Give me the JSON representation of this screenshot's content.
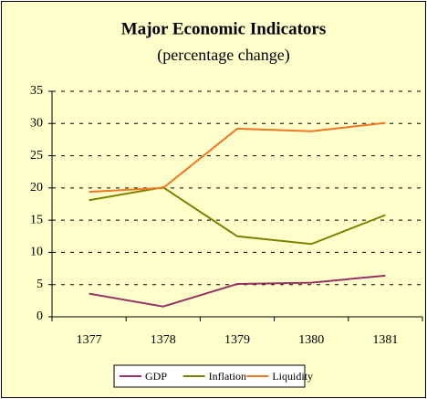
{
  "chart_data": {
    "type": "line",
    "title": "Major Economic Indicators",
    "subtitle": "(percentage change)",
    "categories": [
      "1377",
      "1378",
      "1379",
      "1380",
      "1381"
    ],
    "series": [
      {
        "name": "GDP",
        "color": "#993366",
        "values": [
          3.6,
          1.6,
          5.1,
          5.3,
          6.4
        ]
      },
      {
        "name": "Inflation",
        "color": "#808000",
        "values": [
          18.1,
          20.1,
          12.5,
          11.3,
          15.8
        ]
      },
      {
        "name": "Liquidity",
        "color": "#F07820",
        "values": [
          19.4,
          20.0,
          29.2,
          28.8,
          30.1
        ]
      }
    ],
    "ylim": [
      0,
      35
    ],
    "yticks": [
      0,
      5,
      10,
      15,
      20,
      25,
      30,
      35
    ],
    "grid": true,
    "legend": "bottom"
  }
}
